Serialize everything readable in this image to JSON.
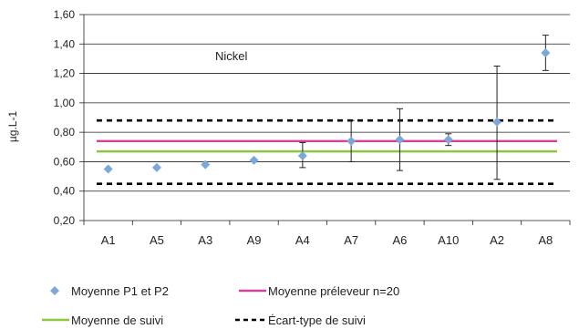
{
  "chart_data": {
    "type": "scatter",
    "title": "",
    "annotation": "Nickel",
    "xlabel": "",
    "ylabel": "µg.L-1",
    "categories": [
      "A1",
      "A5",
      "A3",
      "A9",
      "A4",
      "A7",
      "A6",
      "A10",
      "A2",
      "A8"
    ],
    "ylim": [
      0.2,
      1.6
    ],
    "yticks": [
      "0,20",
      "0,40",
      "0,60",
      "0,80",
      "1,00",
      "1,20",
      "1,40",
      "1,60"
    ],
    "grid": true,
    "legend_position": "bottom",
    "series": [
      {
        "name": "Moyenne P1 et P2",
        "style": "marker",
        "color": "#7ba7d9",
        "values": [
          0.55,
          0.56,
          0.58,
          0.61,
          0.64,
          0.74,
          0.75,
          0.75,
          0.87,
          1.34
        ],
        "error_low": [
          null,
          null,
          null,
          null,
          0.56,
          0.6,
          0.54,
          0.71,
          0.48,
          1.22
        ],
        "error_high": [
          null,
          null,
          null,
          null,
          0.73,
          0.88,
          0.96,
          0.79,
          1.25,
          1.46
        ]
      },
      {
        "name": "Moyenne préleveur n=20",
        "style": "line",
        "color": "#d4409a",
        "value": 0.74
      },
      {
        "name": "Moyenne de suivi",
        "style": "line",
        "color": "#8ec63f",
        "value": 0.67
      },
      {
        "name": "Écart-type de suivi",
        "style": "dashed",
        "color": "#000000",
        "values": [
          0.45,
          0.88
        ]
      }
    ]
  }
}
